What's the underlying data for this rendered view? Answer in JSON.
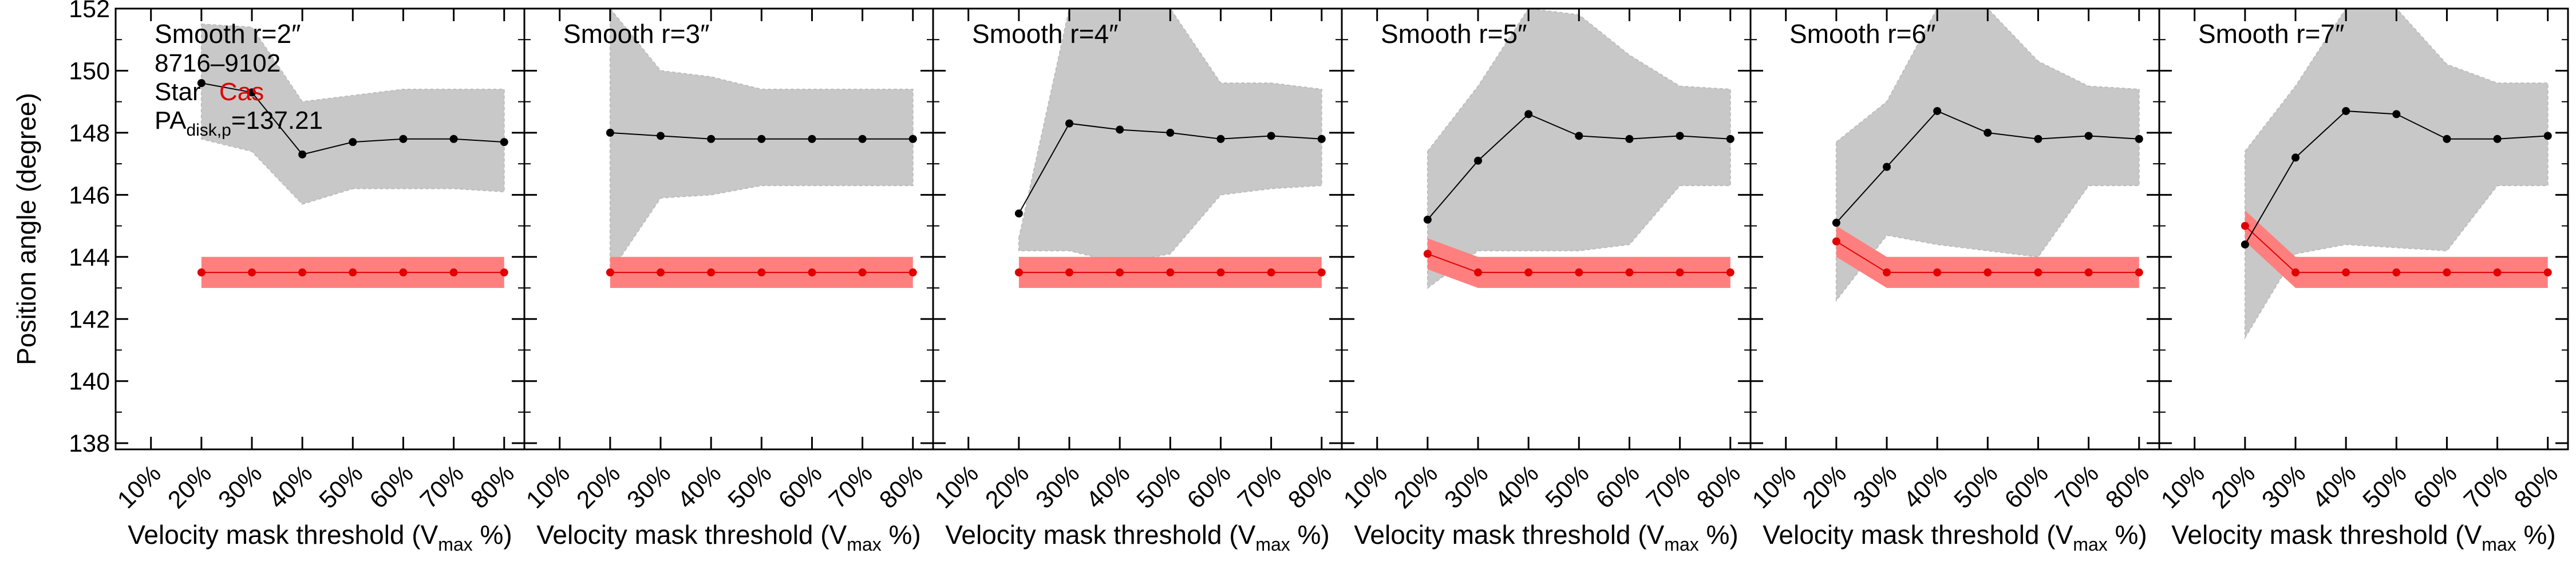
{
  "chart_data": {
    "type": "line",
    "ylabel": "Position angle (degree)",
    "xlabel_prefix": "Velocity mask threshold (V",
    "xlabel_sub": "max",
    "xlabel_suffix": " %)",
    "ylim": [
      137.8,
      152
    ],
    "yticks": [
      138,
      140,
      142,
      144,
      146,
      148,
      150,
      152
    ],
    "x_tick_labels": [
      "10%",
      "20%",
      "30%",
      "40%",
      "50%",
      "60%",
      "70%",
      "80%"
    ],
    "x_tick_values": [
      10,
      20,
      30,
      40,
      50,
      60,
      70,
      80
    ],
    "xlim": [
      3,
      84
    ],
    "colors": {
      "black_series": "#000000",
      "red_series": "#e00000",
      "gray_band": "#c8c8c8",
      "red_band": "#ff7f7f"
    },
    "annotation": {
      "name": "8716–9102",
      "star_prefix": "Star",
      "star_cas": "Cas",
      "pa_prefix": "PA",
      "pa_sub": "disk,p",
      "pa_value": "=137.21"
    },
    "panels": [
      {
        "title": "Smooth r=2″",
        "x": [
          20,
          30,
          40,
          50,
          60,
          70,
          80
        ],
        "black": [
          149.6,
          149.3,
          147.3,
          147.7,
          147.8,
          147.8,
          147.7
        ],
        "gray_upper": [
          151.5,
          151.4,
          149.0,
          149.2,
          149.4,
          149.4,
          149.4
        ],
        "gray_lower": [
          147.8,
          147.4,
          145.7,
          146.2,
          146.2,
          146.2,
          146.1
        ],
        "red": [
          143.5,
          143.5,
          143.5,
          143.5,
          143.5,
          143.5,
          143.5
        ],
        "red_upper": [
          144.0,
          144.0,
          144.0,
          144.0,
          144.0,
          144.0,
          144.0
        ],
        "red_lower": [
          143.0,
          143.0,
          143.0,
          143.0,
          143.0,
          143.0,
          143.0
        ]
      },
      {
        "title": "Smooth r=3″",
        "x": [
          20,
          30,
          40,
          50,
          60,
          70,
          80
        ],
        "black": [
          148.0,
          147.9,
          147.8,
          147.8,
          147.8,
          147.8,
          147.8
        ],
        "gray_upper": [
          152.0,
          150.0,
          149.8,
          149.4,
          149.4,
          149.4,
          149.4
        ],
        "gray_lower": [
          143.5,
          145.9,
          146.0,
          146.3,
          146.3,
          146.3,
          146.3
        ],
        "red": [
          143.5,
          143.5,
          143.5,
          143.5,
          143.5,
          143.5,
          143.5
        ],
        "red_upper": [
          144.0,
          144.0,
          144.0,
          144.0,
          144.0,
          144.0,
          144.0
        ],
        "red_lower": [
          143.0,
          143.0,
          143.0,
          143.0,
          143.0,
          143.0,
          143.0
        ]
      },
      {
        "title": "Smooth r=4″",
        "x": [
          20,
          30,
          40,
          50,
          60,
          70,
          80
        ],
        "black": [
          145.4,
          148.3,
          148.1,
          148.0,
          147.8,
          147.9,
          147.8
        ],
        "gray_upper": [
          144.6,
          152.0,
          152.0,
          152.0,
          149.6,
          149.6,
          149.4
        ],
        "gray_lower": [
          144.2,
          144.2,
          143.8,
          144.1,
          146.0,
          146.2,
          146.3
        ],
        "red": [
          143.5,
          143.5,
          143.5,
          143.5,
          143.5,
          143.5,
          143.5
        ],
        "red_upper": [
          144.0,
          144.0,
          144.0,
          144.0,
          144.0,
          144.0,
          144.0
        ],
        "red_lower": [
          143.0,
          143.0,
          143.0,
          143.0,
          143.0,
          143.0,
          143.0
        ]
      },
      {
        "title": "Smooth r=5″",
        "x": [
          20,
          30,
          40,
          50,
          60,
          70,
          80
        ],
        "black": [
          145.2,
          147.1,
          148.6,
          147.9,
          147.8,
          147.9,
          147.8
        ],
        "gray_upper": [
          147.4,
          149.5,
          152.0,
          151.8,
          150.5,
          149.5,
          149.4
        ],
        "gray_lower": [
          143.0,
          144.2,
          144.2,
          144.2,
          144.4,
          146.3,
          146.3
        ],
        "red": [
          144.1,
          143.5,
          143.5,
          143.5,
          143.5,
          143.5,
          143.5
        ],
        "red_upper": [
          144.6,
          144.0,
          144.0,
          144.0,
          144.0,
          144.0,
          144.0
        ],
        "red_lower": [
          143.6,
          143.0,
          143.0,
          143.0,
          143.0,
          143.0,
          143.0
        ]
      },
      {
        "title": "Smooth r=6″",
        "x": [
          20,
          30,
          40,
          50,
          60,
          70,
          80
        ],
        "black": [
          145.1,
          146.9,
          148.7,
          148.0,
          147.8,
          147.9,
          147.8
        ],
        "gray_upper": [
          147.7,
          149.0,
          152.0,
          152.0,
          150.3,
          149.5,
          149.4
        ],
        "gray_lower": [
          142.6,
          144.7,
          144.4,
          144.2,
          144.0,
          146.3,
          146.3
        ],
        "red": [
          144.5,
          143.5,
          143.5,
          143.5,
          143.5,
          143.5,
          143.5
        ],
        "red_upper": [
          145.0,
          144.0,
          144.0,
          144.0,
          144.0,
          144.0,
          144.0
        ],
        "red_lower": [
          144.0,
          143.0,
          143.0,
          143.0,
          143.0,
          143.0,
          143.0
        ]
      },
      {
        "title": "Smooth r=7″",
        "x": [
          20,
          30,
          40,
          50,
          60,
          70,
          80
        ],
        "black": [
          144.4,
          147.2,
          148.7,
          148.6,
          147.8,
          147.8,
          147.9
        ],
        "gray_upper": [
          147.4,
          149.5,
          152.0,
          152.0,
          150.2,
          149.6,
          149.6
        ],
        "gray_lower": [
          141.4,
          144.1,
          144.4,
          144.3,
          144.2,
          146.3,
          146.3
        ],
        "red": [
          145.0,
          143.5,
          143.5,
          143.5,
          143.5,
          143.5,
          143.5
        ],
        "red_upper": [
          145.5,
          144.0,
          144.0,
          144.0,
          144.0,
          144.0,
          144.0
        ],
        "red_lower": [
          144.5,
          143.0,
          143.0,
          143.0,
          143.0,
          143.0,
          143.0
        ]
      }
    ]
  }
}
